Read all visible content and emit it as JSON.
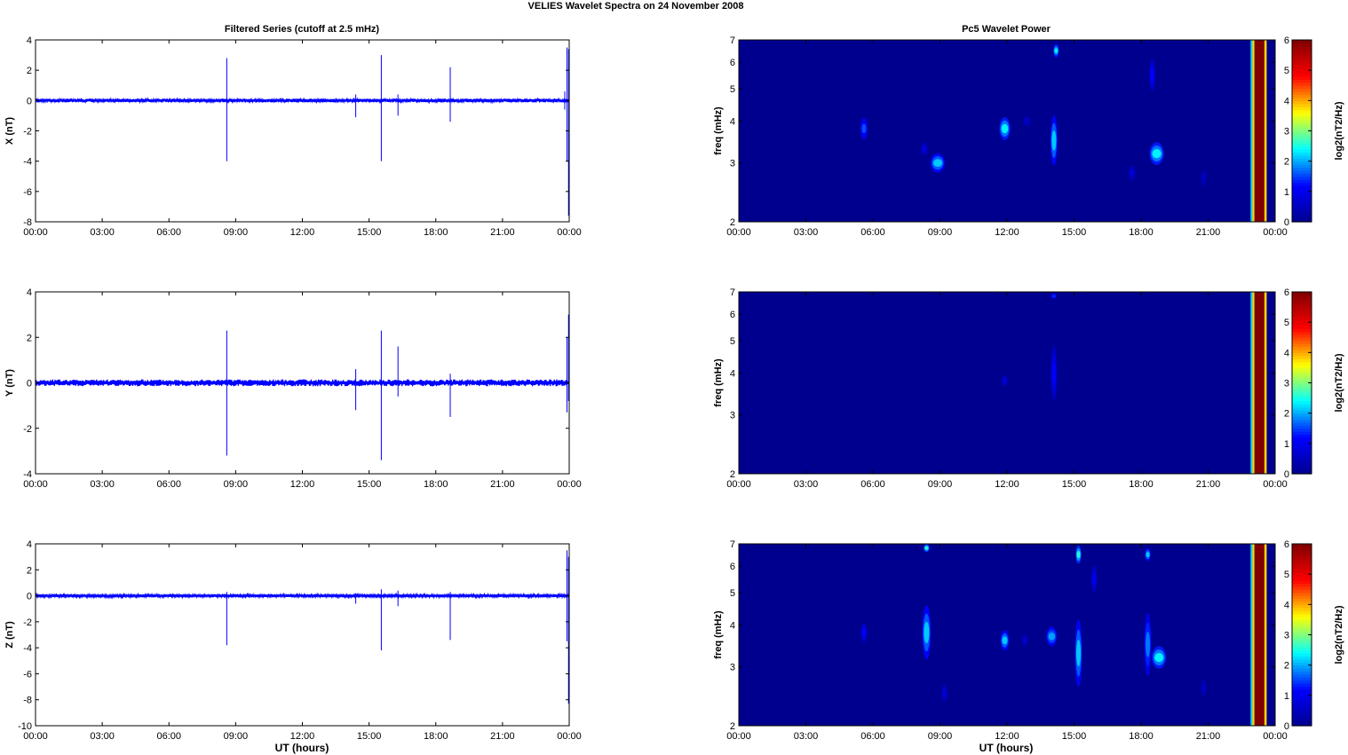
{
  "figure": {
    "title": "VELIES Wavelet Spectra on 24 November  2008",
    "left_column_title": "Filtered Series (cutoff at 2.5 mHz)",
    "right_column_title": "Pc5 Wavelet Power",
    "xlabel": "UT (hours)"
  },
  "colors": {
    "trace": "#0000ff",
    "background_field": "#00008f",
    "colormap": [
      "#00008f",
      "#0000ff",
      "#00ffff",
      "#ffff00",
      "#ff0000",
      "#800000"
    ]
  },
  "chart_data": [
    {
      "type": "line",
      "ylabel": "X (nT)",
      "xticks": [
        "00:00",
        "03:00",
        "06:00",
        "09:00",
        "12:00",
        "15:00",
        "18:00",
        "21:00",
        "00:00"
      ],
      "xlim": [
        0,
        24
      ],
      "ylim": [
        -8,
        4
      ],
      "yticks": [
        4,
        2,
        0,
        -2,
        -4,
        -6,
        -8
      ],
      "baseline_noise_amplitude": 0.08,
      "spikes": [
        {
          "t": 8.6,
          "max": 2.8,
          "min": -4.0
        },
        {
          "t": 14.4,
          "max": 0.4,
          "min": -1.1
        },
        {
          "t": 15.55,
          "max": 3.0,
          "min": -4.0
        },
        {
          "t": 16.3,
          "max": 0.4,
          "min": -1.0
        },
        {
          "t": 18.65,
          "max": 2.2,
          "min": -1.4
        },
        {
          "t": 23.8,
          "max": 0.6,
          "min": -0.6
        },
        {
          "t": 23.9,
          "max": 3.5,
          "min": -4.0
        },
        {
          "t": 23.97,
          "max": 3.4,
          "min": -7.6
        }
      ]
    },
    {
      "type": "line",
      "ylabel": "Y (nT)",
      "xticks": [
        "00:00",
        "03:00",
        "06:00",
        "09:00",
        "12:00",
        "15:00",
        "18:00",
        "21:00",
        "00:00"
      ],
      "xlim": [
        0,
        24
      ],
      "ylim": [
        -4,
        4
      ],
      "yticks": [
        4,
        2,
        0,
        -2,
        -4
      ],
      "baseline_noise_amplitude": 0.1,
      "spikes": [
        {
          "t": 8.6,
          "max": 2.3,
          "min": -3.2
        },
        {
          "t": 14.4,
          "max": 0.6,
          "min": -1.2
        },
        {
          "t": 15.55,
          "max": 2.3,
          "min": -3.4
        },
        {
          "t": 16.3,
          "max": 1.6,
          "min": -0.6
        },
        {
          "t": 18.65,
          "max": 0.4,
          "min": -1.5
        },
        {
          "t": 23.9,
          "max": 2.0,
          "min": -1.3
        },
        {
          "t": 23.97,
          "max": 3.0,
          "min": -0.8
        }
      ]
    },
    {
      "type": "line",
      "ylabel": "Z (nT)",
      "xticks": [
        "00:00",
        "03:00",
        "06:00",
        "09:00",
        "12:00",
        "15:00",
        "18:00",
        "21:00",
        "00:00"
      ],
      "xlim": [
        0,
        24
      ],
      "ylim": [
        -10,
        4
      ],
      "yticks": [
        4,
        2,
        0,
        -2,
        -4,
        -6,
        -8,
        -10
      ],
      "baseline_noise_amplitude": 0.08,
      "spikes": [
        {
          "t": 8.6,
          "max": 0.3,
          "min": -3.8
        },
        {
          "t": 14.4,
          "max": 0.2,
          "min": -0.6
        },
        {
          "t": 15.55,
          "max": 0.5,
          "min": -4.2
        },
        {
          "t": 16.3,
          "max": 0.4,
          "min": -0.8
        },
        {
          "t": 18.65,
          "max": 0.3,
          "min": -3.4
        },
        {
          "t": 23.9,
          "max": 3.5,
          "min": -3.5
        },
        {
          "t": 23.97,
          "max": 3.0,
          "min": -8.3
        }
      ]
    },
    {
      "type": "heatmap",
      "ylabel": "freq (mHz)",
      "colorbar_label": "log2(nT2/Hz)",
      "xticks": [
        "00:00",
        "03:00",
        "06:00",
        "09:00",
        "12:00",
        "15:00",
        "18:00",
        "21:00",
        "00:00"
      ],
      "xlim": [
        0,
        24
      ],
      "yscale": "log",
      "ylim": [
        2,
        7
      ],
      "yticks": [
        2,
        3,
        4,
        5,
        6,
        7
      ],
      "clim": [
        0,
        6
      ],
      "cticks": [
        0,
        1,
        2,
        3,
        4,
        5,
        6
      ],
      "features": [
        {
          "t": 5.6,
          "f": 3.8,
          "dt": 0.1,
          "df": 0.6,
          "v": 1.6
        },
        {
          "t": 8.3,
          "f": 3.3,
          "dt": 0.1,
          "df": 0.3,
          "v": 0.8
        },
        {
          "t": 8.9,
          "f": 3.0,
          "dt": 0.2,
          "df": 0.4,
          "v": 2.2
        },
        {
          "t": 11.9,
          "f": 3.8,
          "dt": 0.15,
          "df": 0.6,
          "v": 2.4
        },
        {
          "t": 12.9,
          "f": 4.0,
          "dt": 0.1,
          "df": 0.3,
          "v": 0.6
        },
        {
          "t": 14.1,
          "f": 3.5,
          "dt": 0.1,
          "df": 1.2,
          "v": 2.2
        },
        {
          "t": 14.2,
          "f": 6.5,
          "dt": 0.05,
          "df": 0.6,
          "v": 2.4
        },
        {
          "t": 17.6,
          "f": 2.8,
          "dt": 0.1,
          "df": 0.3,
          "v": 0.7
        },
        {
          "t": 18.5,
          "f": 5.5,
          "dt": 0.08,
          "df": 1.2,
          "v": 1.2
        },
        {
          "t": 18.7,
          "f": 3.2,
          "dt": 0.2,
          "df": 0.5,
          "v": 2.4
        },
        {
          "t": 20.8,
          "f": 2.7,
          "dt": 0.08,
          "df": 0.3,
          "v": 0.6
        }
      ],
      "saturated_band": {
        "t_start": 22.9,
        "t_end": 23.6
      }
    },
    {
      "type": "heatmap",
      "ylabel": "freq (mHz)",
      "colorbar_label": "log2(nT2/Hz)",
      "xticks": [
        "00:00",
        "03:00",
        "06:00",
        "09:00",
        "12:00",
        "15:00",
        "18:00",
        "21:00",
        "00:00"
      ],
      "xlim": [
        0,
        24
      ],
      "yscale": "log",
      "ylim": [
        2,
        7
      ],
      "yticks": [
        2,
        3,
        4,
        5,
        6,
        7
      ],
      "clim": [
        0,
        6
      ],
      "cticks": [
        0,
        1,
        2,
        3,
        4,
        5,
        6
      ],
      "features": [
        {
          "t": 11.9,
          "f": 3.8,
          "dt": 0.08,
          "df": 0.3,
          "v": 0.8
        },
        {
          "t": 14.1,
          "f": 4.0,
          "dt": 0.08,
          "df": 1.5,
          "v": 1.2
        },
        {
          "t": 14.1,
          "f": 6.8,
          "dt": 0.05,
          "df": 0.3,
          "v": 1.4
        }
      ],
      "saturated_band": {
        "t_start": 22.9,
        "t_end": 23.6
      }
    },
    {
      "type": "heatmap",
      "ylabel": "freq (mHz)",
      "colorbar_label": "log2(nT2/Hz)",
      "xticks": [
        "00:00",
        "03:00",
        "06:00",
        "09:00",
        "12:00",
        "15:00",
        "18:00",
        "21:00",
        "00:00"
      ],
      "xlim": [
        0,
        24
      ],
      "yscale": "log",
      "ylim": [
        2,
        7
      ],
      "yticks": [
        2,
        3,
        4,
        5,
        6,
        7
      ],
      "clim": [
        0,
        6
      ],
      "cticks": [
        0,
        1,
        2,
        3,
        4,
        5,
        6
      ],
      "features": [
        {
          "t": 5.6,
          "f": 3.8,
          "dt": 0.08,
          "df": 0.5,
          "v": 1.2
        },
        {
          "t": 8.4,
          "f": 3.8,
          "dt": 0.12,
          "df": 1.4,
          "v": 2.2
        },
        {
          "t": 8.4,
          "f": 6.8,
          "dt": 0.05,
          "df": 0.4,
          "v": 2.6
        },
        {
          "t": 9.2,
          "f": 2.5,
          "dt": 0.08,
          "df": 0.3,
          "v": 0.8
        },
        {
          "t": 11.9,
          "f": 3.6,
          "dt": 0.12,
          "df": 0.5,
          "v": 2.2
        },
        {
          "t": 12.8,
          "f": 3.6,
          "dt": 0.08,
          "df": 0.3,
          "v": 0.7
        },
        {
          "t": 14.0,
          "f": 3.7,
          "dt": 0.15,
          "df": 0.5,
          "v": 2.0
        },
        {
          "t": 15.2,
          "f": 3.3,
          "dt": 0.1,
          "df": 1.5,
          "v": 2.2
        },
        {
          "t": 15.2,
          "f": 6.5,
          "dt": 0.05,
          "df": 0.8,
          "v": 2.6
        },
        {
          "t": 15.9,
          "f": 5.5,
          "dt": 0.05,
          "df": 1.0,
          "v": 1.0
        },
        {
          "t": 18.3,
          "f": 3.5,
          "dt": 0.1,
          "df": 1.5,
          "v": 1.8
        },
        {
          "t": 18.3,
          "f": 6.5,
          "dt": 0.05,
          "df": 0.6,
          "v": 2.2
        },
        {
          "t": 18.8,
          "f": 3.2,
          "dt": 0.2,
          "df": 0.5,
          "v": 2.4
        },
        {
          "t": 20.8,
          "f": 2.6,
          "dt": 0.08,
          "df": 0.3,
          "v": 0.6
        }
      ],
      "saturated_band": {
        "t_start": 22.9,
        "t_end": 23.6
      }
    }
  ]
}
